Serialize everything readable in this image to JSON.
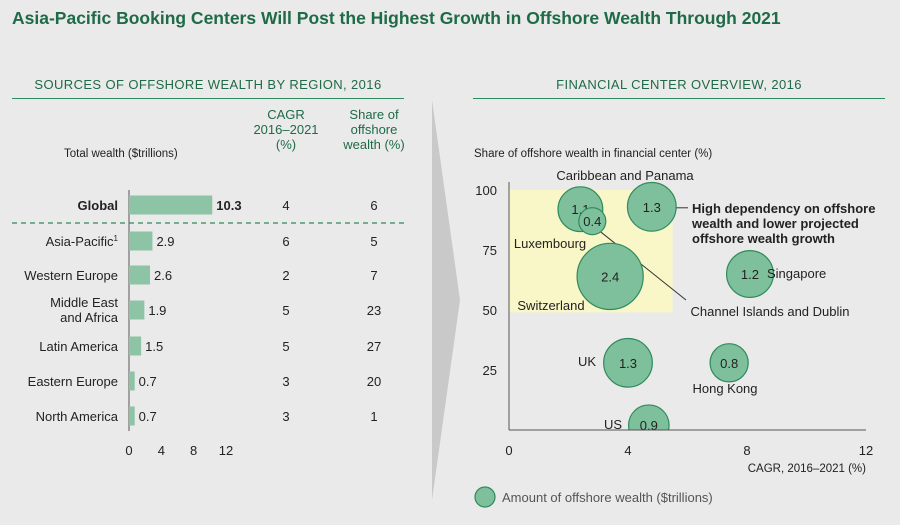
{
  "title": "Asia-Pacific Booking Centers Will Post the Highest Growth in Offshore Wealth Through 2021",
  "left_section": {
    "heading": "SOURCES OF OFFSHORE WEALTH BY REGION, 2016",
    "total_wealth_label": "Total wealth ($trillions)",
    "cagr_header": [
      "CAGR",
      "2016–2021",
      "(%)"
    ],
    "share_header": [
      "Share of",
      "offshore",
      "wealth (%)"
    ]
  },
  "right_section": {
    "heading": "FINANCIAL CENTER OVERVIEW, 2016",
    "ylabel": "Share of offshore wealth in financial center (%)",
    "xlabel": "CAGR, 2016–2021 (%)",
    "highlight_note": [
      "High dependency on offshore",
      "wealth and lower projected",
      "offshore wealth growth"
    ],
    "legend": "Amount of offshore wealth ($trillions)"
  },
  "colors": {
    "title": "#1f6a47",
    "bar": "#8ec4a6",
    "bubble_fill": "#7fc09c",
    "bubble_stroke": "#2f8a5c",
    "highlight": "#f9f7c8",
    "background": "#eaeaea",
    "arrow": "#c9c9c9"
  },
  "chart_data": [
    {
      "type": "bar",
      "orientation": "horizontal",
      "categories": [
        "Global",
        "Asia-Pacific¹",
        "Western Europe",
        "Middle East and Africa",
        "Latin America",
        "Eastern Europe",
        "North America"
      ],
      "values": [
        10.3,
        2.9,
        2.6,
        1.9,
        1.5,
        0.7,
        0.7
      ],
      "value_labels": [
        "10.3",
        "2.9",
        "2.6",
        "1.9",
        "1.5",
        "0.7",
        "0.7"
      ],
      "cagr": [
        "4",
        "6",
        "2",
        "5",
        "5",
        "3",
        "3"
      ],
      "share": [
        "6",
        "5",
        "7",
        "23",
        "27",
        "20",
        "1"
      ],
      "xlim": [
        0,
        12
      ],
      "xticks": [
        0,
        4,
        8,
        12
      ]
    },
    {
      "type": "scatter",
      "points": [
        {
          "name": "Caribbean and Panama",
          "x": 4.8,
          "y": 93,
          "size": 1.3,
          "label": "1.3"
        },
        {
          "name": "Luxembourg",
          "x": 2.4,
          "y": 92,
          "size": 1.1,
          "label": "1.1"
        },
        {
          "name": "Channel Islands and Dublin",
          "x": 2.8,
          "y": 87,
          "size": 0.4,
          "label": "0.4"
        },
        {
          "name": "Switzerland",
          "x": 3.4,
          "y": 64,
          "size": 2.4,
          "label": "2.4"
        },
        {
          "name": "Singapore",
          "x": 8.1,
          "y": 65,
          "size": 1.2,
          "label": "1.2"
        },
        {
          "name": "UK",
          "x": 4.0,
          "y": 28,
          "size": 1.3,
          "label": "1.3"
        },
        {
          "name": "Hong Kong",
          "x": 7.4,
          "y": 28,
          "size": 0.8,
          "label": "0.8"
        },
        {
          "name": "US",
          "x": 4.7,
          "y": 2,
          "size": 0.9,
          "label": "0.9"
        }
      ],
      "xlim": [
        0,
        12
      ],
      "xticks": [
        0,
        4,
        8,
        12
      ],
      "ylim": [
        0,
        100
      ],
      "yticks": [
        25,
        50,
        75,
        100
      ],
      "highlight_region": {
        "x": [
          0,
          5.5
        ],
        "y": [
          49,
          100
        ]
      }
    }
  ]
}
